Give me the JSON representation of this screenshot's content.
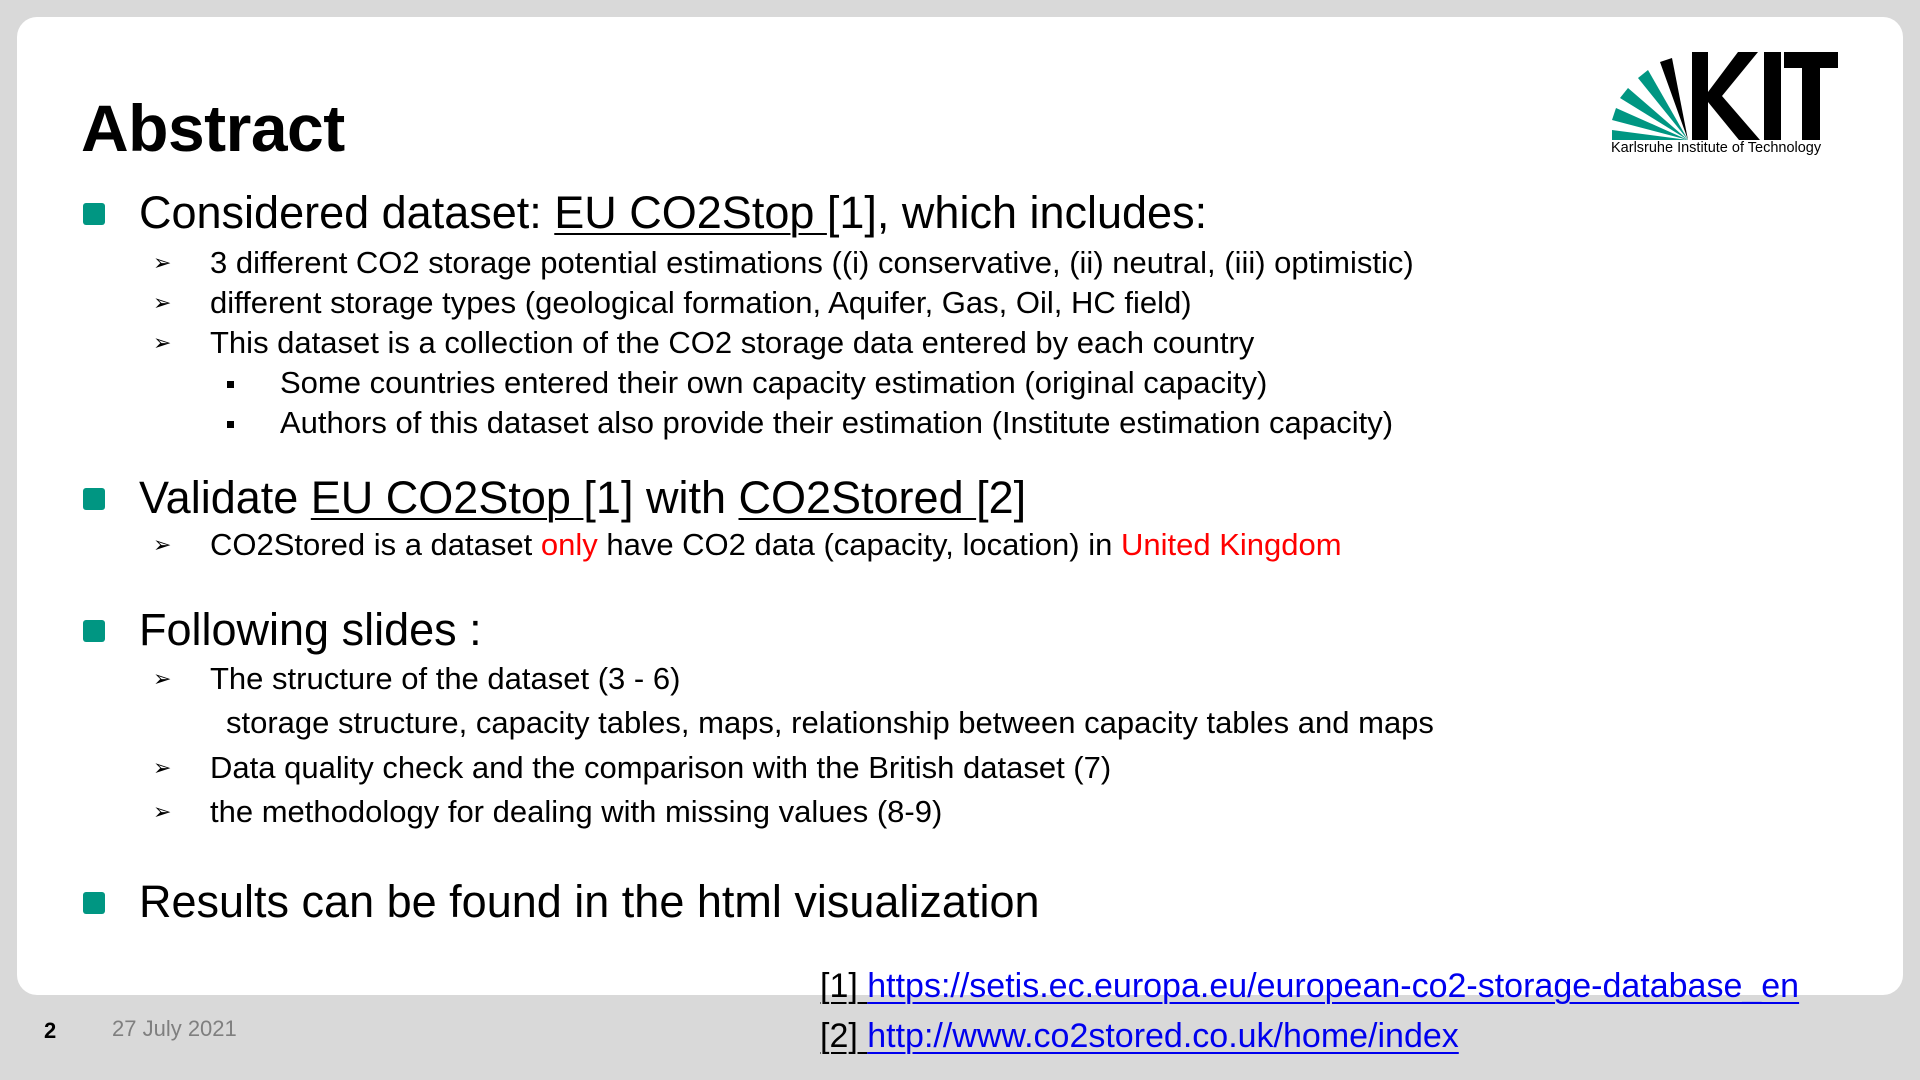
{
  "title": "Abstract",
  "logo": {
    "text": "KIT",
    "subtitle": "Karlsruhe Institute of Technology"
  },
  "section1": {
    "prefix": "Considered dataset: ",
    "link": "EU CO2Stop ",
    "suffix": "[1], which includes:",
    "items": [
      "3 different CO2 storage potential estimations ((i) conservative, (ii) neutral, (iii) optimistic)",
      "different storage types (geological formation, Aquifer, Gas, Oil, HC field)",
      "This dataset is a collection of the CO2 storage data entered by each country"
    ],
    "subitems": [
      "Some countries entered their own capacity estimation (original capacity)",
      "Authors of this dataset also provide their estimation (Institute estimation capacity)"
    ]
  },
  "section2": {
    "prefix": "Validate ",
    "link1": "EU CO2Stop ",
    "mid": "[1] with ",
    "link2": "CO2Stored ",
    "suffix": "[2]",
    "item": {
      "p1": "CO2Stored is a dataset ",
      "red1": "only",
      "p2": " have CO2 data (capacity, location) in ",
      "red2": "United Kingdom"
    }
  },
  "section3": {
    "heading": "Following slides :",
    "items": [
      "The structure of the dataset (3 - 6)",
      "storage structure, capacity tables, maps, relationship between capacity tables and maps",
      "Data quality check and the comparison with the British dataset (7)",
      "the methodology for dealing with missing values (8-9)"
    ]
  },
  "section4": {
    "heading": "Results can be found in the html visualization"
  },
  "references": [
    {
      "num": "[1]  ",
      "url": "https://setis.ec.europa.eu/european-co2-storage-database_en"
    },
    {
      "num": "[2]  ",
      "url": "http://www.co2stored.co.uk/home/index"
    }
  ],
  "footer": {
    "page": "2",
    "date": "27 July 2021"
  },
  "colors": {
    "accent": "#009682",
    "highlight": "#ff0000",
    "link": "#0000ee"
  }
}
